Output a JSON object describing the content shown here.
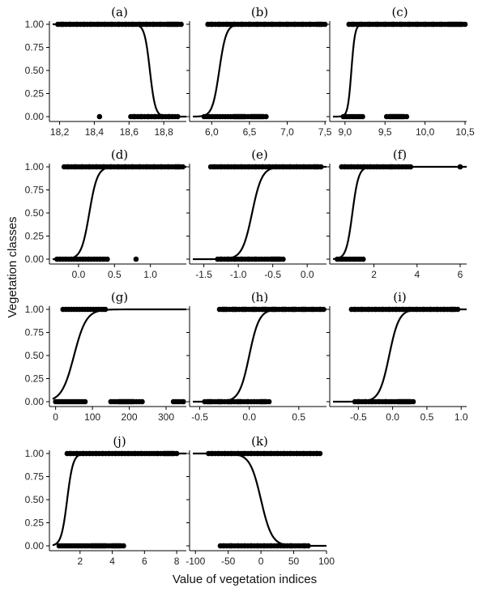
{
  "figure": {
    "ylabel": "Vegetation classes",
    "xlabel": "Value of vegetation indices"
  },
  "chart_data": [
    {
      "id": "a",
      "type": "scatter",
      "title": "(a)",
      "xlim": [
        18.16,
        18.93
      ],
      "ylim": [
        0,
        1
      ],
      "xticks": [
        18.2,
        18.4,
        18.6,
        18.8
      ],
      "xtick_labels": [
        "18,2",
        "18,4",
        "18,6",
        "18,8"
      ],
      "yticks": [
        0,
        0.25,
        0.5,
        0.75,
        1
      ],
      "ytick_labels": [
        "0.00",
        "0.25",
        "0.50",
        "0.75",
        "1.00"
      ],
      "class1_x": [
        18.19,
        18.24,
        18.28,
        18.32,
        18.36,
        18.4,
        18.44,
        18.48,
        18.52,
        18.56,
        18.6,
        18.64,
        18.68,
        18.72,
        18.76,
        18.8,
        18.9
      ],
      "class0_x": [
        18.43,
        18.61,
        18.65,
        18.69,
        18.73,
        18.77,
        18.81,
        18.85,
        18.88
      ],
      "curve": {
        "midpoint": 18.72,
        "slope": -65
      }
    },
    {
      "id": "b",
      "type": "scatter",
      "title": "(b)",
      "xlim": [
        5.75,
        7.52
      ],
      "ylim": [
        0,
        1
      ],
      "xticks": [
        6.0,
        6.5,
        7.0,
        7.5
      ],
      "xtick_labels": [
        "6,0",
        "6,5",
        "7,0",
        "7,5"
      ],
      "yticks": [
        0,
        0.25,
        0.5,
        0.75,
        1
      ],
      "ytick_labels": [],
      "class1_x": [
        5.95,
        6.05,
        6.15,
        6.25,
        6.35,
        6.45,
        6.55,
        6.65,
        6.75,
        6.85,
        6.95,
        7.05,
        7.15,
        7.25,
        7.35,
        7.5
      ],
      "class0_x": [
        5.9,
        5.97,
        6.04,
        6.11,
        6.18,
        6.25,
        6.48,
        6.72
      ],
      "curve": {
        "midpoint": 6.1,
        "slope": 22
      }
    },
    {
      "id": "c",
      "type": "scatter",
      "title": "(c)",
      "xlim": [
        8.85,
        10.52
      ],
      "ylim": [
        0,
        1
      ],
      "xticks": [
        9.0,
        9.5,
        10.0,
        10.5
      ],
      "xtick_labels": [
        "9,0",
        "9,5",
        "10,0",
        "10,5"
      ],
      "yticks": [
        0,
        0.25,
        0.5,
        0.75,
        1
      ],
      "ytick_labels": [],
      "class1_x": [
        9.05,
        9.15,
        9.25,
        9.35,
        9.45,
        9.55,
        9.65,
        9.75,
        9.85,
        9.95,
        10.05,
        10.15,
        10.25,
        10.5
      ],
      "class0_x": [
        8.98,
        9.02,
        9.06,
        9.1,
        9.14,
        9.18,
        9.22,
        9.52,
        9.77
      ],
      "curve": {
        "midpoint": 9.08,
        "slope": 45
      }
    },
    {
      "id": "d",
      "type": "scatter",
      "title": "(d)",
      "xlim": [
        -0.36,
        1.5
      ],
      "ylim": [
        0,
        1
      ],
      "xticks": [
        0.0,
        0.5,
        1.0
      ],
      "xtick_labels": [
        "0.0",
        "0.5",
        "1.0"
      ],
      "yticks": [
        0,
        0.25,
        0.5,
        0.75,
        1
      ],
      "ytick_labels": [
        "0.00",
        "0.25",
        "0.50",
        "0.75",
        "1.00"
      ],
      "class1_x": [
        -0.2,
        -0.1,
        0.0,
        0.1,
        0.2,
        0.3,
        0.4,
        0.5,
        0.6,
        0.7,
        0.8,
        0.9,
        1.0,
        1.1,
        1.2,
        1.3,
        1.45
      ],
      "class0_x": [
        -0.3,
        -0.22,
        -0.14,
        -0.06,
        0.02,
        0.1,
        0.18,
        0.26,
        0.34,
        0.4,
        0.8
      ],
      "curve": {
        "midpoint": 0.15,
        "slope": 18
      }
    },
    {
      "id": "e",
      "type": "scatter",
      "title": "(e)",
      "xlim": [
        -1.66,
        0.28
      ],
      "ylim": [
        0,
        1
      ],
      "xticks": [
        -1.5,
        -1.0,
        -0.5,
        0.0
      ],
      "xtick_labels": [
        "-1.5",
        "-1.0",
        "-0.5",
        "0.0"
      ],
      "yticks": [
        0,
        0.25,
        0.5,
        0.75,
        1
      ],
      "ytick_labels": [],
      "class1_x": [
        -1.4,
        -1.3,
        -1.2,
        -1.1,
        -1.0,
        -0.9,
        -0.8,
        -0.7,
        -0.6,
        -0.5,
        -0.4,
        -0.3,
        -0.2,
        -0.1,
        0.0,
        0.05,
        0.2
      ],
      "class0_x": [
        -1.3,
        -1.2,
        -1.1,
        -1.0,
        -0.9,
        -0.8,
        -0.7,
        -0.62,
        -0.57,
        -0.35
      ],
      "curve": {
        "midpoint": -0.8,
        "slope": 14
      }
    },
    {
      "id": "f",
      "type": "scatter",
      "title": "(f)",
      "xlim": [
        0.1,
        6.3
      ],
      "ylim": [
        0,
        1
      ],
      "xticks": [
        2,
        4,
        6
      ],
      "xtick_labels": [
        "2",
        "4",
        "6"
      ],
      "yticks": [
        0,
        0.25,
        0.5,
        0.75,
        1
      ],
      "ytick_labels": [],
      "class1_x": [
        0.5,
        0.8,
        1.1,
        1.4,
        1.7,
        2.0,
        2.3,
        2.6,
        3.0,
        3.3,
        3.5,
        3.7,
        6.0
      ],
      "class0_x": [
        0.3,
        0.5,
        0.7,
        0.9,
        1.1,
        1.3,
        1.5
      ],
      "curve": {
        "midpoint": 1.0,
        "slope": 7
      }
    },
    {
      "id": "g",
      "type": "scatter",
      "title": "(g)",
      "xlim": [
        -8,
        355
      ],
      "ylim": [
        0,
        1
      ],
      "xticks": [
        0,
        100,
        200,
        300
      ],
      "xtick_labels": [
        "0",
        "100",
        "200",
        "300"
      ],
      "yticks": [
        0,
        0.25,
        0.5,
        0.75,
        1
      ],
      "ytick_labels": [
        "0.00",
        "0.25",
        "0.50",
        "0.75",
        "1.00"
      ],
      "class1_x": [
        20,
        35,
        50,
        65,
        80,
        95,
        110,
        125,
        135
      ],
      "class0_x": [
        0,
        10,
        20,
        30,
        40,
        50,
        60,
        70,
        80,
        150,
        163,
        220,
        235,
        320,
        333,
        347
      ],
      "curve": {
        "midpoint": 50,
        "slope": 0.06
      }
    },
    {
      "id": "h",
      "type": "scatter",
      "title": "(h)",
      "xlim": [
        -0.57,
        0.78
      ],
      "ylim": [
        0,
        1
      ],
      "xticks": [
        -0.5,
        0.0,
        0.5
      ],
      "xtick_labels": [
        "-0.5",
        "0.0",
        "0.5"
      ],
      "yticks": [
        0,
        0.25,
        0.5,
        0.75,
        1
      ],
      "ytick_labels": [],
      "class1_x": [
        -0.3,
        -0.2,
        -0.1,
        0.0,
        0.1,
        0.2,
        0.3,
        0.4,
        0.5,
        0.6,
        0.68,
        0.75
      ],
      "class0_x": [
        -0.45,
        -0.35,
        -0.25,
        -0.15,
        -0.05,
        0.02,
        0.08,
        0.2
      ],
      "curve": {
        "midpoint": 0.0,
        "slope": 20
      }
    },
    {
      "id": "i",
      "type": "scatter",
      "title": "(i)",
      "xlim": [
        -0.87,
        1.08
      ],
      "ylim": [
        0,
        1
      ],
      "xticks": [
        -0.5,
        0.0,
        0.5,
        1.0
      ],
      "xtick_labels": [
        "-0.5",
        "0.0",
        "0.5",
        "1.0"
      ],
      "yticks": [
        0,
        0.25,
        0.5,
        0.75,
        1
      ],
      "ytick_labels": [],
      "class1_x": [
        -0.6,
        -0.5,
        -0.4,
        -0.3,
        -0.2,
        -0.1,
        0.0,
        0.1,
        0.2,
        0.3,
        0.4,
        0.5,
        0.6,
        0.7,
        0.8,
        0.95
      ],
      "class0_x": [
        -0.55,
        -0.45,
        -0.35,
        -0.25,
        -0.15,
        -0.05,
        0.03,
        0.3
      ],
      "curve": {
        "midpoint": -0.05,
        "slope": 14
      }
    },
    {
      "id": "j",
      "type": "scatter",
      "title": "(j)",
      "xlim": [
        0.3,
        8.6
      ],
      "ylim": [
        0,
        1
      ],
      "xticks": [
        2,
        4,
        6,
        8
      ],
      "xtick_labels": [
        "2",
        "4",
        "6",
        "8"
      ],
      "yticks": [
        0,
        0.25,
        0.5,
        0.75,
        1
      ],
      "ytick_labels": [
        "0.00",
        "0.25",
        "0.50",
        "0.75",
        "1.00"
      ],
      "class1_x": [
        1.2,
        1.6,
        2.0,
        2.4,
        2.8,
        3.2,
        3.6,
        4.0,
        4.4,
        4.8,
        5.2,
        5.6,
        6.0,
        6.3,
        6.6,
        7.0,
        8.0
      ],
      "class0_x": [
        0.7,
        0.9,
        1.1,
        1.3,
        1.5,
        1.7,
        1.9,
        2.1,
        2.3,
        2.5,
        3.8,
        4.7
      ],
      "curve": {
        "midpoint": 1.2,
        "slope": 5.5
      }
    },
    {
      "id": "k",
      "type": "scatter",
      "title": "(k)",
      "xlim": [
        -104,
        100
      ],
      "ylim": [
        0,
        1
      ],
      "xticks": [
        -100,
        -50,
        0,
        50,
        100
      ],
      "xtick_labels": [
        "-100",
        "-50",
        "0",
        "50",
        "100"
      ],
      "yticks": [
        0,
        0.25,
        0.5,
        0.75,
        1
      ],
      "ytick_labels": [],
      "class1_x": [
        -80,
        -70,
        -60,
        -50,
        -40,
        -30,
        -20,
        -10,
        0,
        10,
        20,
        30,
        40,
        50,
        60,
        70,
        80,
        90
      ],
      "class0_x": [
        -62,
        -52,
        -40,
        -30,
        -20,
        -10,
        0,
        10,
        20,
        30,
        40,
        52,
        60,
        72
      ],
      "curve": {
        "midpoint": 0,
        "slope": -0.12
      }
    }
  ]
}
